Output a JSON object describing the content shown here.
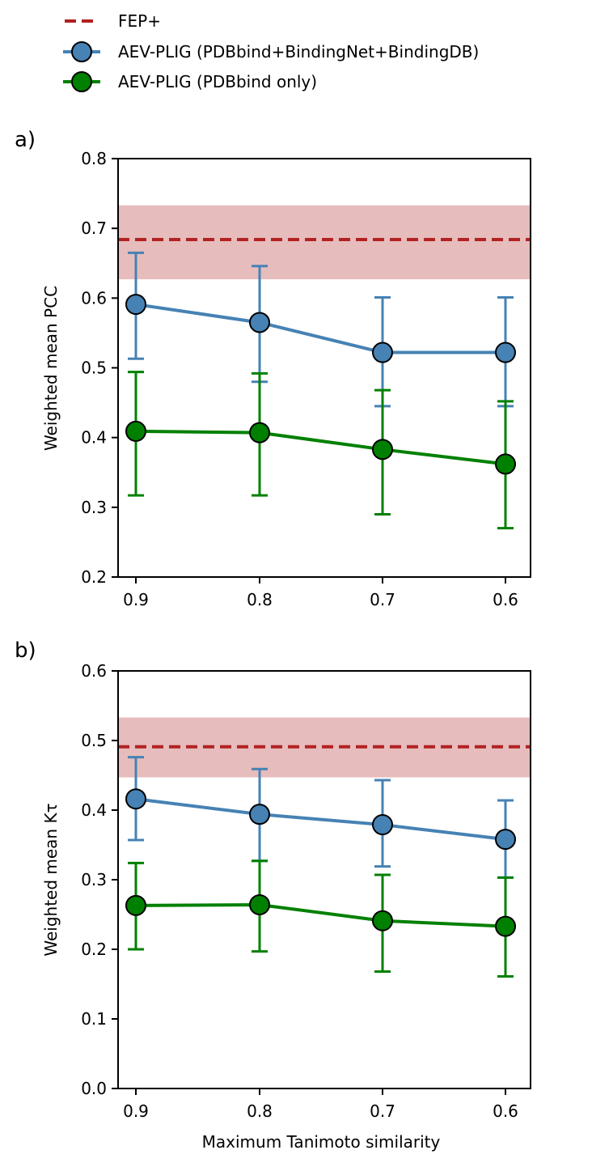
{
  "chart_data": {
    "type": "line",
    "legend": {
      "placement": "top-left-above",
      "entries": [
        {
          "key": "fep",
          "label": "FEP+",
          "color": "#b22222",
          "style": "dashed"
        },
        {
          "key": "broad",
          "label": "AEV-PLIG (PDBbind+BindingNet+BindingDB)",
          "color": "#4682b4",
          "marker": "circle"
        },
        {
          "key": "pdb",
          "label": "AEV-PLIG (PDBbind only)",
          "color": "#008000",
          "marker": "circle"
        }
      ]
    },
    "xlabel": "Maximum Tanimoto similarity",
    "x": [
      0.9,
      0.8,
      0.7,
      0.6
    ],
    "x_tick_labels": [
      "0.9",
      "0.8",
      "0.7",
      "0.6"
    ],
    "x_inverted": true,
    "panels": [
      {
        "panel_label": "a)",
        "ylabel": "Weighted mean PCC",
        "ylim": [
          0.2,
          0.8
        ],
        "y_ticks": [
          0.2,
          0.3,
          0.4,
          0.5,
          0.6,
          0.7,
          0.8
        ],
        "y_tick_labels": [
          "0.2",
          "0.3",
          "0.4",
          "0.5",
          "0.6",
          "0.7",
          "0.8"
        ],
        "fep": {
          "value": 0.684,
          "band": [
            0.627,
            0.733
          ],
          "band_color": "#e6b8b8"
        },
        "series": [
          {
            "key": "broad",
            "name": "AEV-PLIG (PDBbind+BindingNet+BindingDB)",
            "color": "#4682b4",
            "values": [
              0.591,
              0.565,
              0.522,
              0.522
            ],
            "err_low": [
              0.513,
              0.48,
              0.445,
              0.445
            ],
            "err_high": [
              0.665,
              0.646,
              0.601,
              0.601
            ]
          },
          {
            "key": "pdb",
            "name": "AEV-PLIG (PDBbind only)",
            "color": "#008000",
            "values": [
              0.409,
              0.407,
              0.383,
              0.362
            ],
            "err_low": [
              0.317,
              0.317,
              0.29,
              0.27
            ],
            "err_high": [
              0.494,
              0.492,
              0.468,
              0.452
            ]
          }
        ]
      },
      {
        "panel_label": "b)",
        "ylabel": "Weighted mean Kτ",
        "ylim": [
          0.0,
          0.6
        ],
        "y_ticks": [
          0.0,
          0.1,
          0.2,
          0.3,
          0.4,
          0.5,
          0.6
        ],
        "y_tick_labels": [
          "0.0",
          "0.1",
          "0.2",
          "0.3",
          "0.4",
          "0.5",
          "0.6"
        ],
        "fep": {
          "value": 0.491,
          "band": [
            0.447,
            0.533
          ],
          "band_color": "#e6b8b8"
        },
        "series": [
          {
            "key": "broad",
            "name": "AEV-PLIG (PDBbind+BindingNet+BindingDB)",
            "color": "#4682b4",
            "values": [
              0.416,
              0.394,
              0.379,
              0.358
            ],
            "err_low": [
              0.357,
              0.327,
              0.319,
              0.303
            ],
            "err_high": [
              0.476,
              0.459,
              0.443,
              0.414
            ]
          },
          {
            "key": "pdb",
            "name": "AEV-PLIG (PDBbind only)",
            "color": "#008000",
            "values": [
              0.263,
              0.264,
              0.241,
              0.233
            ],
            "err_low": [
              0.2,
              0.197,
              0.168,
              0.161
            ],
            "err_high": [
              0.324,
              0.327,
              0.307,
              0.303
            ]
          }
        ]
      }
    ]
  }
}
